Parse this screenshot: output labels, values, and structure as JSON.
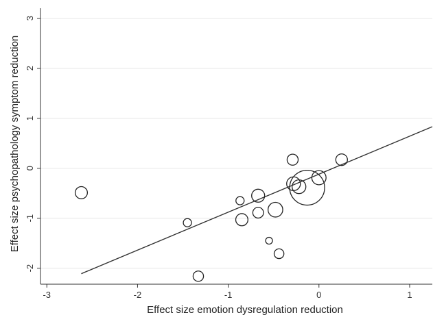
{
  "chart_data": {
    "type": "scatter",
    "xlabel": "Effect size emotion dysregulation reduction",
    "ylabel": "Effect size psychopathology symptom reduction",
    "xlim": [
      -3.07,
      1.25
    ],
    "ylim": [
      -2.32,
      3.2
    ],
    "x_ticks": [
      -3,
      -2,
      -1,
      0,
      1
    ],
    "y_ticks": [
      -2,
      -1,
      0,
      1,
      2,
      3
    ],
    "x_tick_labels": [
      "-3",
      "-2",
      "-1",
      "0",
      "1"
    ],
    "y_tick_labels": [
      "-2",
      "-1",
      "0",
      "1",
      "2",
      "3"
    ],
    "grid": "horizontal",
    "colors": {
      "marker": "#222222",
      "line": "#333333",
      "grid": "#e6e6e6",
      "axis": "#333333"
    },
    "points": [
      {
        "x": -2.62,
        "y": -0.49,
        "weight": 2.2
      },
      {
        "x": -1.45,
        "y": -1.09,
        "weight": 1.0
      },
      {
        "x": -1.33,
        "y": -2.16,
        "weight": 1.6
      },
      {
        "x": -0.87,
        "y": -0.65,
        "weight": 1.0
      },
      {
        "x": -0.85,
        "y": -1.03,
        "weight": 2.2
      },
      {
        "x": -0.67,
        "y": -0.55,
        "weight": 2.5
      },
      {
        "x": -0.67,
        "y": -0.89,
        "weight": 1.7
      },
      {
        "x": -0.55,
        "y": -1.45,
        "weight": 0.7
      },
      {
        "x": -0.48,
        "y": -0.83,
        "weight": 3.2
      },
      {
        "x": -0.44,
        "y": -1.71,
        "weight": 1.4
      },
      {
        "x": -0.29,
        "y": 0.17,
        "weight": 1.8
      },
      {
        "x": -0.28,
        "y": -0.31,
        "weight": 2.8
      },
      {
        "x": -0.22,
        "y": -0.37,
        "weight": 2.8
      },
      {
        "x": -0.13,
        "y": -0.39,
        "weight": 18.0
      },
      {
        "x": 0.0,
        "y": -0.19,
        "weight": 3.0
      },
      {
        "x": 0.25,
        "y": 0.17,
        "weight": 2.0
      }
    ],
    "fit_line": {
      "x": [
        -2.62,
        1.25
      ],
      "y": [
        -2.11,
        0.83
      ]
    }
  }
}
